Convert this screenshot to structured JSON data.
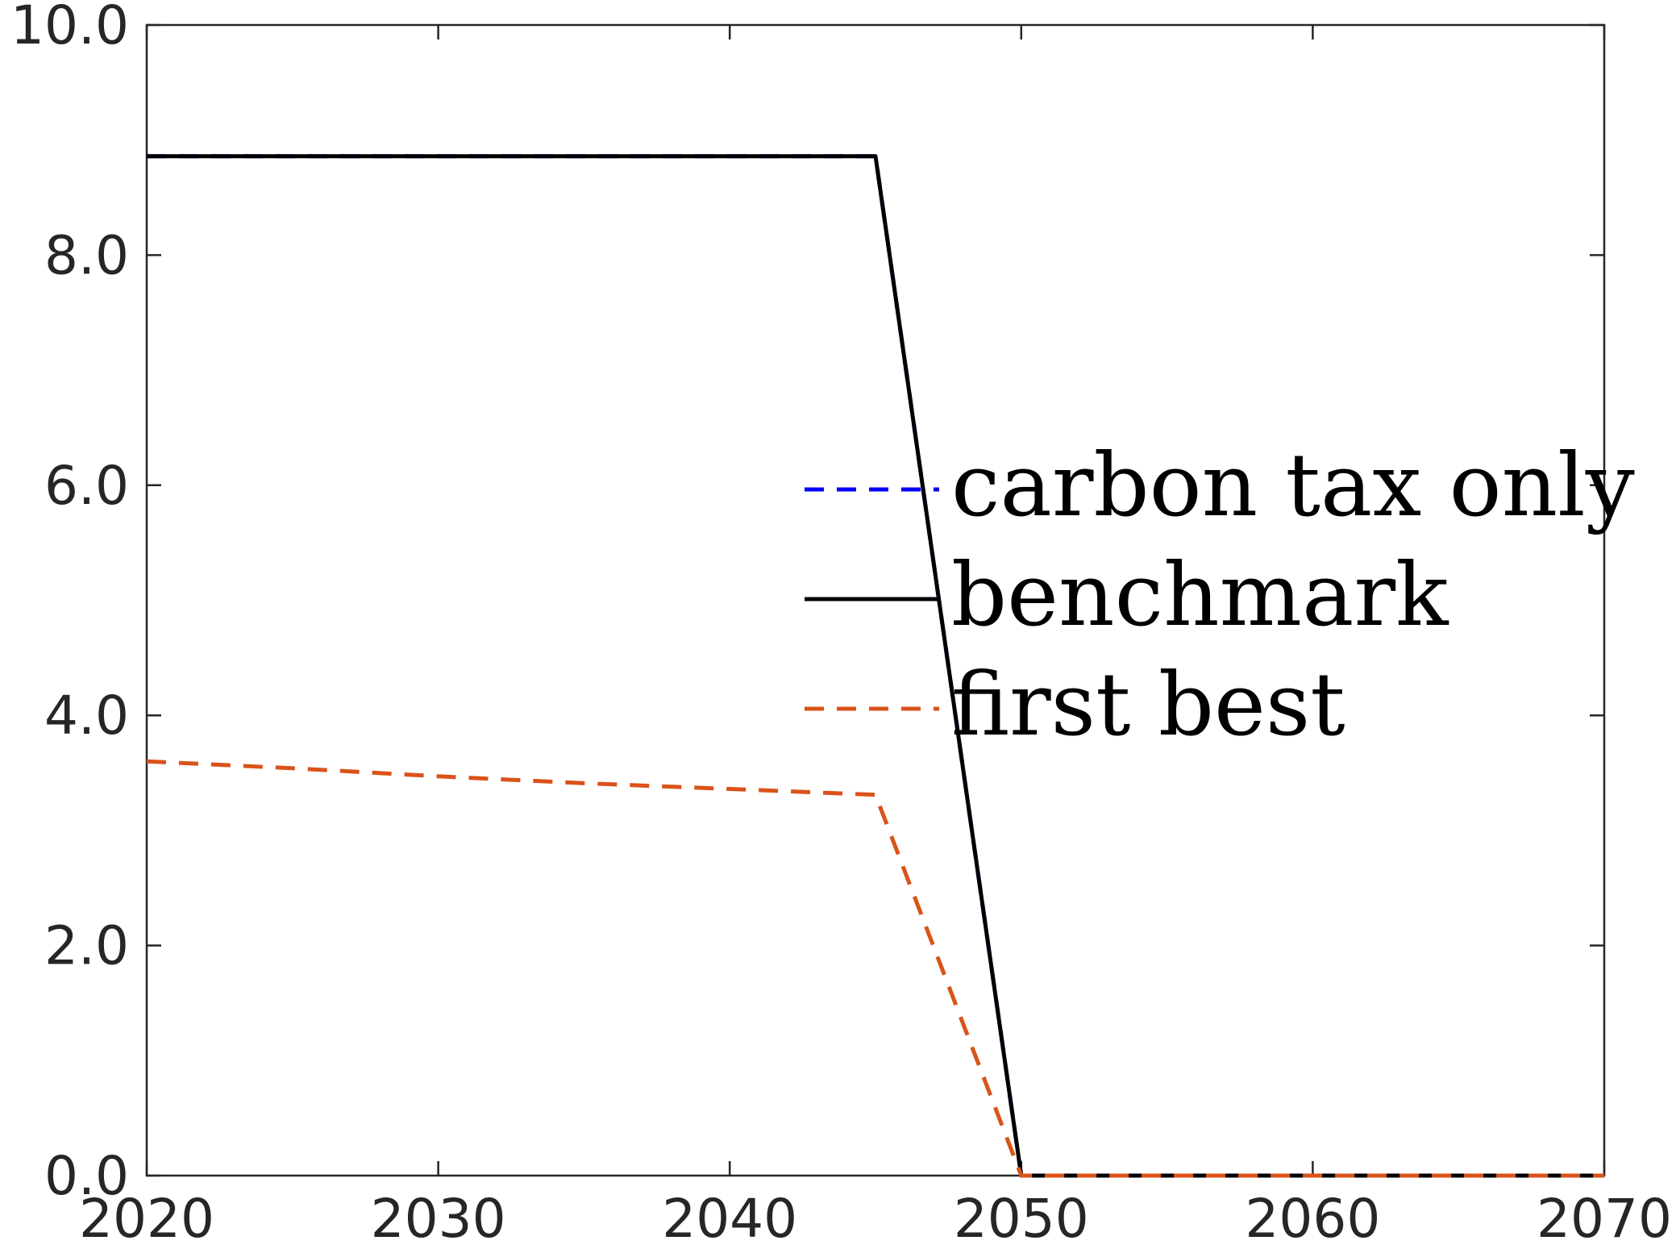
{
  "chart_data": {
    "type": "line",
    "title": "",
    "xlabel": "",
    "ylabel": "",
    "xlim": [
      2020,
      2070
    ],
    "ylim": [
      0,
      10
    ],
    "xticks": [
      2020,
      2030,
      2040,
      2050,
      2060,
      2070
    ],
    "xtick_labels": [
      "2020",
      "2030",
      "2040",
      "2050",
      "2060",
      "2070"
    ],
    "yticks": [
      0,
      2,
      4,
      6,
      8,
      10
    ],
    "ytick_labels": [
      "0.0",
      "2.0",
      "4.0",
      "6.0",
      "8.0",
      "10.0"
    ],
    "grid": false,
    "legend_position": "center-right",
    "series": [
      {
        "name": "carbon tax only",
        "color": "#0000ff",
        "style": "dashed",
        "x": [
          2020,
          2025,
          2030,
          2035,
          2040,
          2045,
          2050,
          2055,
          2060,
          2065,
          2070
        ],
        "y": [
          8.86,
          8.86,
          8.86,
          8.86,
          8.86,
          8.86,
          0,
          0,
          0,
          0,
          0
        ]
      },
      {
        "name": "benchmark",
        "color": "#000000",
        "style": "solid",
        "x": [
          2020,
          2025,
          2030,
          2035,
          2040,
          2045,
          2050,
          2055,
          2060,
          2065,
          2070
        ],
        "y": [
          8.86,
          8.86,
          8.86,
          8.86,
          8.86,
          8.86,
          0,
          0,
          0,
          0,
          0
        ]
      },
      {
        "name": "first best",
        "color": "#d95319",
        "style": "dashed",
        "x": [
          2020,
          2025,
          2030,
          2035,
          2040,
          2045,
          2050,
          2055,
          2060,
          2065,
          2070
        ],
        "y": [
          3.6,
          3.54,
          3.47,
          3.41,
          3.36,
          3.31,
          0,
          0,
          0,
          0,
          0
        ]
      }
    ]
  }
}
